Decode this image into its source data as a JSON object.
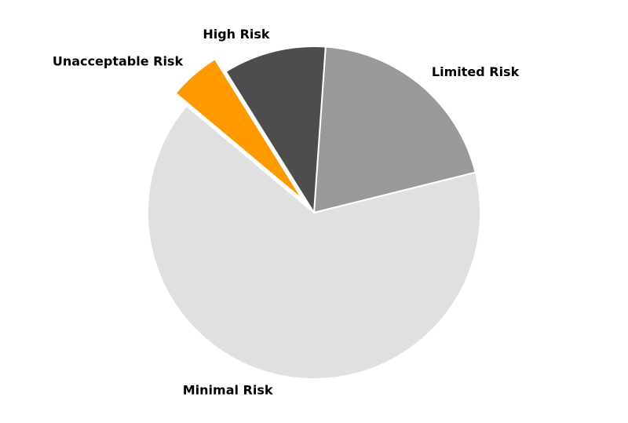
{
  "chart_data": {
    "type": "pie",
    "title": "",
    "slices": [
      {
        "label": "Limited Risk",
        "value": 20,
        "color": "#999999",
        "exploded": false
      },
      {
        "label": "Minimal Risk",
        "value": 65,
        "color": "#e0e0e0",
        "exploded": false
      },
      {
        "label": "Unacceptable Risk",
        "value": 5,
        "color": "#ff9900",
        "exploded": true
      },
      {
        "label": "High Risk",
        "value": 10,
        "color": "#4d4d4d",
        "exploded": false
      }
    ],
    "start_angle_deg": 86,
    "direction": "clockwise",
    "legend": "none"
  }
}
